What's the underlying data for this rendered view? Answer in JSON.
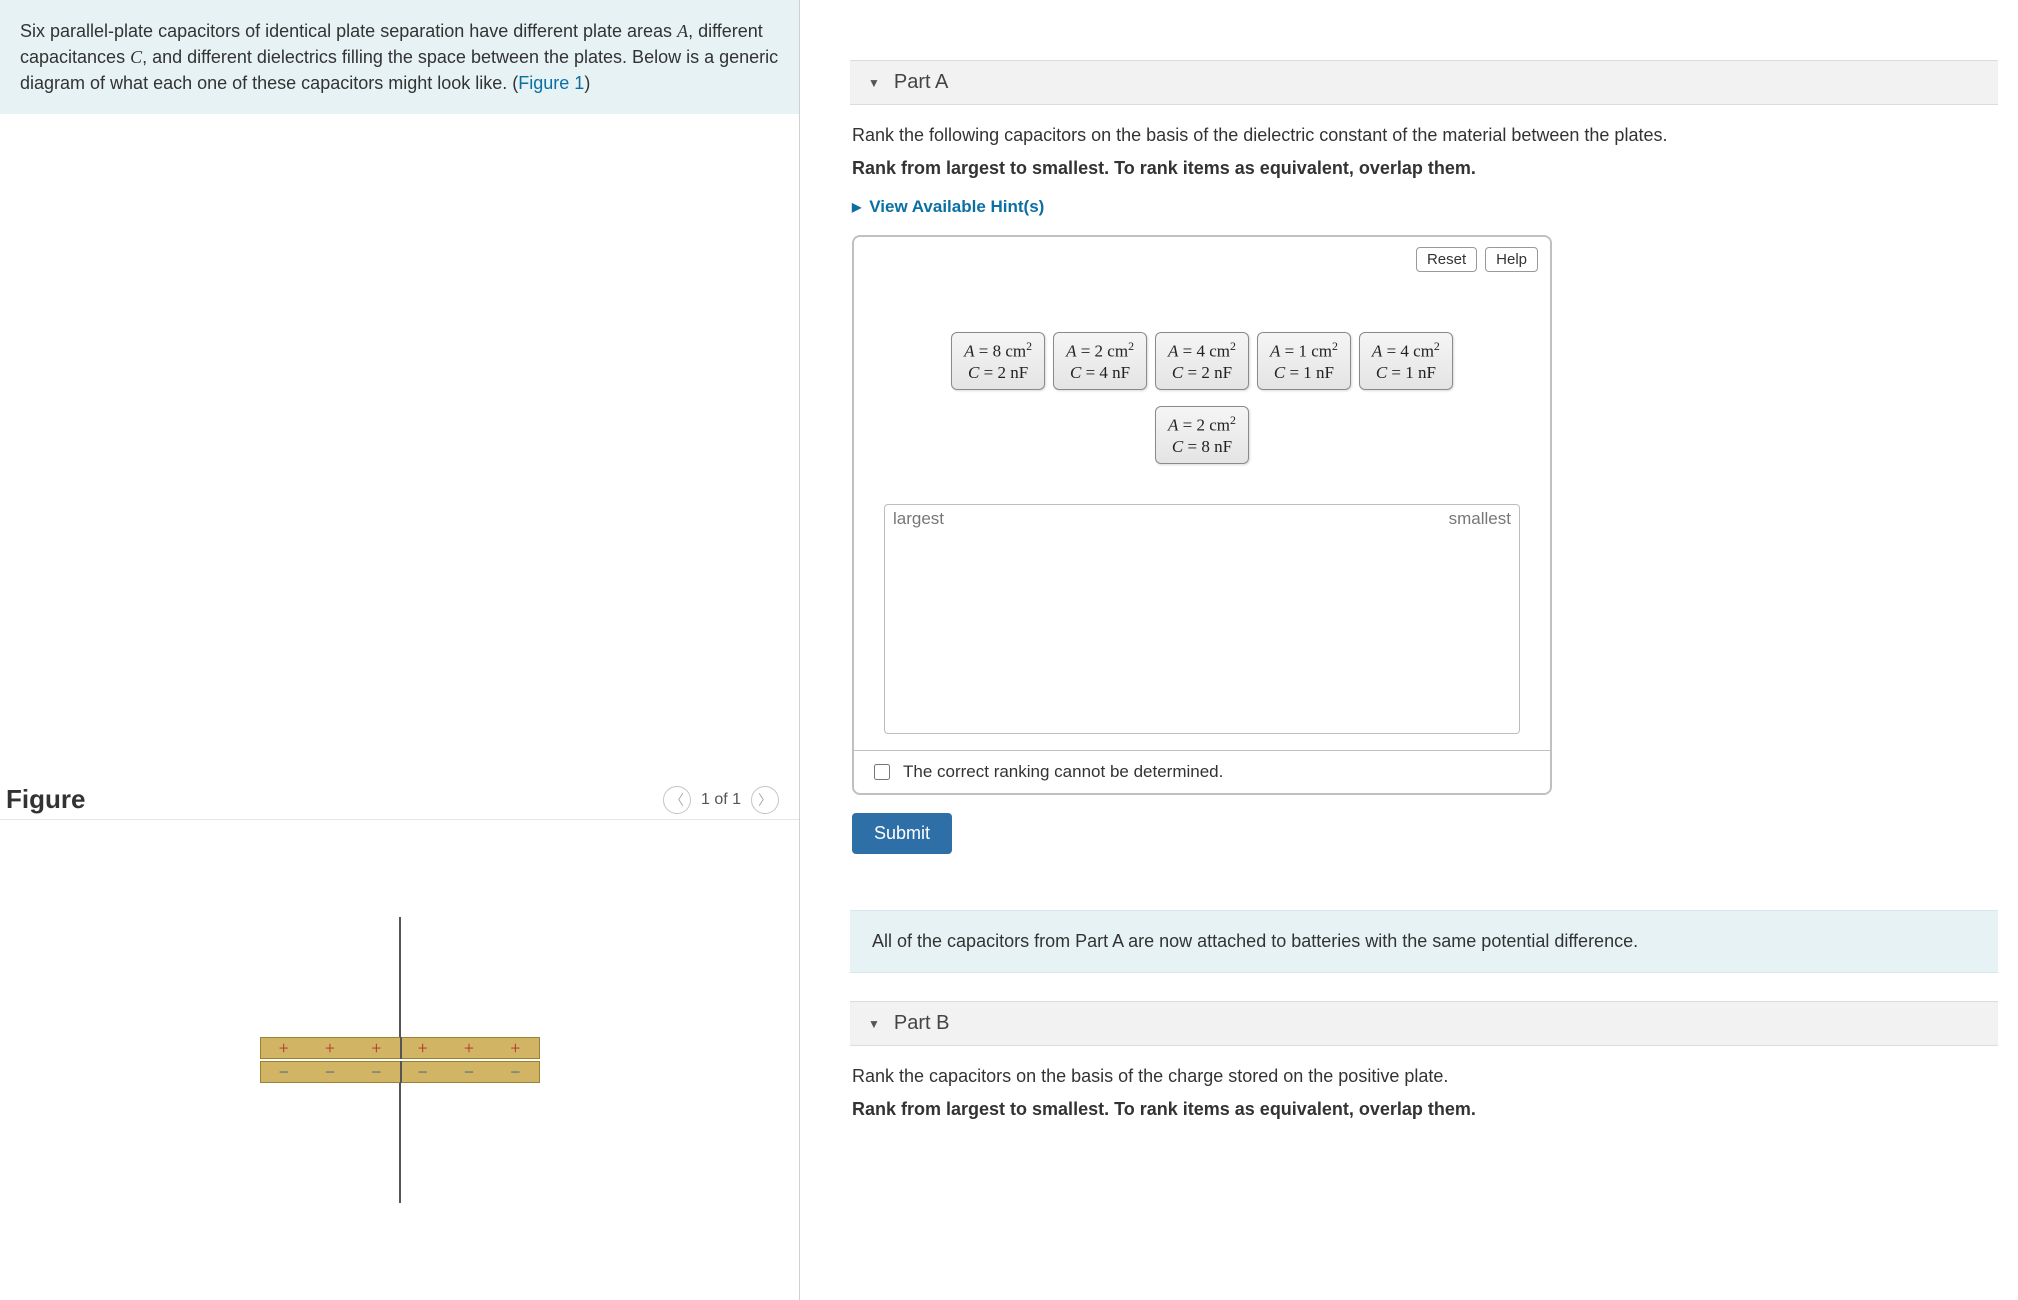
{
  "intro": {
    "prefix": "Six parallel-plate capacitors of identical plate separation have different plate areas ",
    "var1": "A",
    "mid1": ", different capacitances ",
    "var2": "C",
    "mid2": ", and different dielectrics filling the space between the plates. Below is a generic diagram of what each one of these capacitors might look like. (",
    "figlink": "Figure 1",
    "suffix": ")"
  },
  "figure": {
    "title": "Figure",
    "counter": "1 of 1",
    "plate_color": "#d1b464",
    "plate_border": "#9a8030",
    "pos_symbol": "+",
    "neg_symbol": "−"
  },
  "partA": {
    "label": "Part A",
    "line1": "Rank the following capacitors on the basis of the dielectric constant of the material between the plates.",
    "line2": "Rank from largest to smallest. To rank items as equivalent, overlap them.",
    "hints": "View Available Hint(s)",
    "reset": "Reset",
    "help": "Help",
    "largest": "largest",
    "smallest": "smallest",
    "cannot": "The correct ranking cannot be determined.",
    "submit": "Submit",
    "items": [
      {
        "A": "8",
        "Aunit": "cm",
        "C": "2",
        "Cunit": "nF"
      },
      {
        "A": "2",
        "Aunit": "cm",
        "C": "4",
        "Cunit": "nF"
      },
      {
        "A": "4",
        "Aunit": "cm",
        "C": "2",
        "Cunit": "nF"
      },
      {
        "A": "1",
        "Aunit": "cm",
        "C": "1",
        "Cunit": "nF"
      },
      {
        "A": "4",
        "Aunit": "cm",
        "C": "1",
        "Cunit": "nF"
      },
      {
        "A": "2",
        "Aunit": "cm",
        "C": "8",
        "Cunit": "nF"
      }
    ]
  },
  "between_note": "All of the capacitors from Part A are now attached to batteries with the same potential difference.",
  "partB": {
    "label": "Part B",
    "line1": "Rank the capacitors on the basis of the charge stored on the positive plate.",
    "line2": "Rank from largest to smallest. To rank items as equivalent, overlap them."
  }
}
